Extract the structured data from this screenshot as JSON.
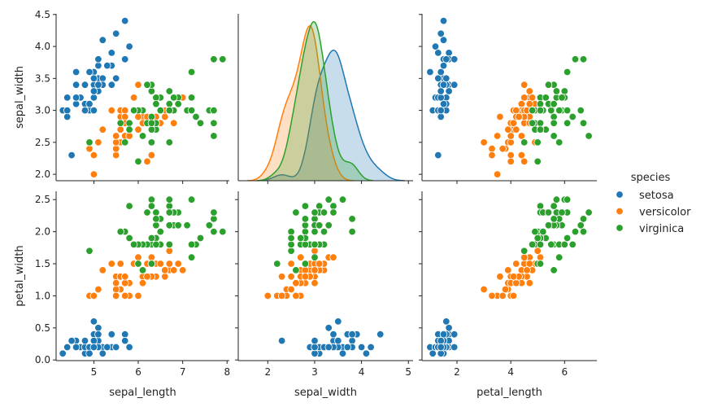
{
  "chart_data": {
    "type": "scatter",
    "kind": "pairplot",
    "columns": [
      "sepal_length",
      "sepal_width",
      "petal_length",
      "petal_width"
    ],
    "x_vars": [
      "sepal_length",
      "sepal_width",
      "petal_length"
    ],
    "y_vars": [
      "sepal_width",
      "petal_width"
    ],
    "diagonal": {
      "type": "kde",
      "variable": "sepal_width",
      "fill": true
    },
    "hue": "species",
    "legend": {
      "title": "species",
      "placement": "right",
      "entries": [
        "setosa",
        "versicolor",
        "virginica"
      ]
    },
    "colors": {
      "setosa": "#1f77b4",
      "versicolor": "#ff7f0e",
      "virginica": "#2ca02c"
    },
    "xlim": {
      "sepal_length": [
        4.15,
        8.05
      ],
      "sepal_width": [
        1.37,
        5.1
      ],
      "petal_length": [
        0.7,
        7.2
      ]
    },
    "ylim": {
      "sepal_width": [
        1.9,
        4.51
      ],
      "petal_width": [
        -0.01,
        2.63
      ]
    },
    "xticks": {
      "sepal_length": [
        "5",
        "6",
        "7",
        "8"
      ],
      "sepal_width": [
        "2",
        "3",
        "4",
        "5"
      ],
      "petal_length": [
        "2",
        "4",
        "6"
      ]
    },
    "yticks": {
      "sepal_width": [
        "2.0",
        "2.5",
        "3.0",
        "3.5",
        "4.0",
        "4.5"
      ],
      "petal_width": [
        "0.0",
        "0.5",
        "1.0",
        "1.5",
        "2.0",
        "2.5"
      ]
    },
    "grid": false,
    "data": {
      "setosa": [
        [
          5.1,
          3.5,
          1.4,
          0.2
        ],
        [
          4.9,
          3.0,
          1.4,
          0.2
        ],
        [
          4.7,
          3.2,
          1.3,
          0.2
        ],
        [
          4.6,
          3.1,
          1.5,
          0.2
        ],
        [
          5.0,
          3.6,
          1.4,
          0.2
        ],
        [
          5.4,
          3.9,
          1.7,
          0.4
        ],
        [
          4.6,
          3.4,
          1.4,
          0.3
        ],
        [
          5.0,
          3.4,
          1.5,
          0.2
        ],
        [
          4.4,
          2.9,
          1.4,
          0.2
        ],
        [
          4.9,
          3.1,
          1.5,
          0.1
        ],
        [
          5.4,
          3.7,
          1.5,
          0.2
        ],
        [
          4.8,
          3.4,
          1.6,
          0.2
        ],
        [
          4.8,
          3.0,
          1.4,
          0.1
        ],
        [
          4.3,
          3.0,
          1.1,
          0.1
        ],
        [
          5.8,
          4.0,
          1.2,
          0.2
        ],
        [
          5.7,
          4.4,
          1.5,
          0.4
        ],
        [
          5.4,
          3.9,
          1.3,
          0.4
        ],
        [
          5.1,
          3.5,
          1.4,
          0.3
        ],
        [
          5.7,
          3.8,
          1.7,
          0.3
        ],
        [
          5.1,
          3.8,
          1.5,
          0.3
        ],
        [
          5.4,
          3.4,
          1.7,
          0.2
        ],
        [
          5.1,
          3.7,
          1.5,
          0.4
        ],
        [
          4.6,
          3.6,
          1.0,
          0.2
        ],
        [
          5.1,
          3.3,
          1.7,
          0.5
        ],
        [
          4.8,
          3.4,
          1.9,
          0.2
        ],
        [
          5.0,
          3.0,
          1.6,
          0.2
        ],
        [
          5.0,
          3.4,
          1.6,
          0.4
        ],
        [
          5.2,
          3.5,
          1.5,
          0.2
        ],
        [
          5.2,
          3.4,
          1.4,
          0.2
        ],
        [
          4.7,
          3.2,
          1.6,
          0.2
        ],
        [
          4.8,
          3.1,
          1.6,
          0.2
        ],
        [
          5.4,
          3.4,
          1.5,
          0.4
        ],
        [
          5.2,
          4.1,
          1.5,
          0.1
        ],
        [
          5.5,
          4.2,
          1.4,
          0.2
        ],
        [
          4.9,
          3.1,
          1.5,
          0.2
        ],
        [
          5.0,
          3.2,
          1.2,
          0.2
        ],
        [
          5.5,
          3.5,
          1.3,
          0.2
        ],
        [
          4.9,
          3.6,
          1.4,
          0.1
        ],
        [
          4.4,
          3.0,
          1.3,
          0.2
        ],
        [
          5.1,
          3.4,
          1.5,
          0.2
        ],
        [
          5.0,
          3.5,
          1.3,
          0.3
        ],
        [
          4.5,
          2.3,
          1.3,
          0.3
        ],
        [
          4.4,
          3.2,
          1.3,
          0.2
        ],
        [
          5.0,
          3.5,
          1.6,
          0.6
        ],
        [
          5.1,
          3.8,
          1.9,
          0.4
        ],
        [
          4.8,
          3.0,
          1.4,
          0.3
        ],
        [
          5.1,
          3.8,
          1.6,
          0.2
        ],
        [
          4.6,
          3.2,
          1.4,
          0.2
        ],
        [
          5.3,
          3.7,
          1.5,
          0.2
        ],
        [
          5.0,
          3.3,
          1.4,
          0.2
        ]
      ],
      "versicolor": [
        [
          7.0,
          3.2,
          4.7,
          1.4
        ],
        [
          6.4,
          3.2,
          4.5,
          1.5
        ],
        [
          6.9,
          3.1,
          4.9,
          1.5
        ],
        [
          5.5,
          2.3,
          4.0,
          1.3
        ],
        [
          6.5,
          2.8,
          4.6,
          1.5
        ],
        [
          5.7,
          2.8,
          4.5,
          1.3
        ],
        [
          6.3,
          3.3,
          4.7,
          1.6
        ],
        [
          4.9,
          2.4,
          3.3,
          1.0
        ],
        [
          6.6,
          2.9,
          4.6,
          1.3
        ],
        [
          5.2,
          2.7,
          3.9,
          1.4
        ],
        [
          5.0,
          2.0,
          3.5,
          1.0
        ],
        [
          5.9,
          3.0,
          4.2,
          1.5
        ],
        [
          6.0,
          2.2,
          4.0,
          1.0
        ],
        [
          6.1,
          2.9,
          4.7,
          1.4
        ],
        [
          5.6,
          2.9,
          3.6,
          1.3
        ],
        [
          6.7,
          3.1,
          4.4,
          1.4
        ],
        [
          5.6,
          3.0,
          4.5,
          1.5
        ],
        [
          5.8,
          2.7,
          4.1,
          1.0
        ],
        [
          6.2,
          2.2,
          4.5,
          1.5
        ],
        [
          5.6,
          2.5,
          3.9,
          1.1
        ],
        [
          5.9,
          3.2,
          4.8,
          1.8
        ],
        [
          6.1,
          2.8,
          4.0,
          1.3
        ],
        [
          6.3,
          2.5,
          4.9,
          1.5
        ],
        [
          6.1,
          2.8,
          4.7,
          1.2
        ],
        [
          6.4,
          2.9,
          4.3,
          1.3
        ],
        [
          6.6,
          3.0,
          4.4,
          1.4
        ],
        [
          6.8,
          2.8,
          4.8,
          1.4
        ],
        [
          6.7,
          3.0,
          5.0,
          1.7
        ],
        [
          6.0,
          2.9,
          4.5,
          1.5
        ],
        [
          5.7,
          2.6,
          3.5,
          1.0
        ],
        [
          5.5,
          2.4,
          3.8,
          1.1
        ],
        [
          5.5,
          2.4,
          3.7,
          1.0
        ],
        [
          5.8,
          2.7,
          3.9,
          1.2
        ],
        [
          6.0,
          2.7,
          5.1,
          1.6
        ],
        [
          5.4,
          3.0,
          4.5,
          1.5
        ],
        [
          6.0,
          3.4,
          4.5,
          1.6
        ],
        [
          6.7,
          3.1,
          4.7,
          1.5
        ],
        [
          6.3,
          2.3,
          4.4,
          1.3
        ],
        [
          5.6,
          3.0,
          4.1,
          1.3
        ],
        [
          5.5,
          2.5,
          4.0,
          1.3
        ],
        [
          5.5,
          2.6,
          4.4,
          1.2
        ],
        [
          6.1,
          3.0,
          4.6,
          1.4
        ],
        [
          5.8,
          2.6,
          4.0,
          1.2
        ],
        [
          5.0,
          2.3,
          3.3,
          1.0
        ],
        [
          5.6,
          2.7,
          4.2,
          1.3
        ],
        [
          5.7,
          3.0,
          4.2,
          1.2
        ],
        [
          5.7,
          2.9,
          4.2,
          1.3
        ],
        [
          6.2,
          2.9,
          4.3,
          1.3
        ],
        [
          5.1,
          2.5,
          3.0,
          1.1
        ],
        [
          5.7,
          2.8,
          4.1,
          1.3
        ]
      ],
      "virginica": [
        [
          6.3,
          3.3,
          6.0,
          2.5
        ],
        [
          5.8,
          2.7,
          5.1,
          1.9
        ],
        [
          7.1,
          3.0,
          5.9,
          2.1
        ],
        [
          6.3,
          2.9,
          5.6,
          1.8
        ],
        [
          6.5,
          3.0,
          5.8,
          2.2
        ],
        [
          7.6,
          3.0,
          6.6,
          2.1
        ],
        [
          4.9,
          2.5,
          4.5,
          1.7
        ],
        [
          7.3,
          2.9,
          6.3,
          1.8
        ],
        [
          6.7,
          2.5,
          5.8,
          1.8
        ],
        [
          7.2,
          3.6,
          6.1,
          2.5
        ],
        [
          6.5,
          3.2,
          5.1,
          2.0
        ],
        [
          6.4,
          2.7,
          5.3,
          1.9
        ],
        [
          6.8,
          3.0,
          5.5,
          2.1
        ],
        [
          5.7,
          2.5,
          5.0,
          2.0
        ],
        [
          5.8,
          2.8,
          5.1,
          2.4
        ],
        [
          6.4,
          3.2,
          5.3,
          2.3
        ],
        [
          6.5,
          3.0,
          5.5,
          1.8
        ],
        [
          7.7,
          3.8,
          6.7,
          2.2
        ],
        [
          7.7,
          2.6,
          6.9,
          2.3
        ],
        [
          6.0,
          2.2,
          5.0,
          1.5
        ],
        [
          6.9,
          3.2,
          5.7,
          2.3
        ],
        [
          5.6,
          2.8,
          4.9,
          2.0
        ],
        [
          7.7,
          2.8,
          6.7,
          2.0
        ],
        [
          6.3,
          2.7,
          4.9,
          1.8
        ],
        [
          6.7,
          3.3,
          5.7,
          2.1
        ],
        [
          7.2,
          3.2,
          6.0,
          1.8
        ],
        [
          6.2,
          2.8,
          4.8,
          1.8
        ],
        [
          6.1,
          3.0,
          4.9,
          1.8
        ],
        [
          6.4,
          2.8,
          5.6,
          2.1
        ],
        [
          7.2,
          3.0,
          5.8,
          1.6
        ],
        [
          7.4,
          2.8,
          6.1,
          1.9
        ],
        [
          7.9,
          3.8,
          6.4,
          2.0
        ],
        [
          6.4,
          2.8,
          5.6,
          2.2
        ],
        [
          6.3,
          2.8,
          5.1,
          1.5
        ],
        [
          6.1,
          2.6,
          5.6,
          1.4
        ],
        [
          7.7,
          3.0,
          6.1,
          2.3
        ],
        [
          6.3,
          3.4,
          5.6,
          2.4
        ],
        [
          6.4,
          3.1,
          5.5,
          1.8
        ],
        [
          6.0,
          3.0,
          4.8,
          1.8
        ],
        [
          6.9,
          3.1,
          5.4,
          2.1
        ],
        [
          6.7,
          3.1,
          5.6,
          2.4
        ],
        [
          6.9,
          3.1,
          5.1,
          2.3
        ],
        [
          5.8,
          2.7,
          5.1,
          1.9
        ],
        [
          6.8,
          3.2,
          5.9,
          2.3
        ],
        [
          6.7,
          3.3,
          5.7,
          2.5
        ],
        [
          6.7,
          3.0,
          5.2,
          2.3
        ],
        [
          6.3,
          2.5,
          5.0,
          1.9
        ],
        [
          6.5,
          3.0,
          5.2,
          2.0
        ],
        [
          6.2,
          3.4,
          5.4,
          2.3
        ],
        [
          5.9,
          3.0,
          5.1,
          1.8
        ]
      ]
    }
  }
}
